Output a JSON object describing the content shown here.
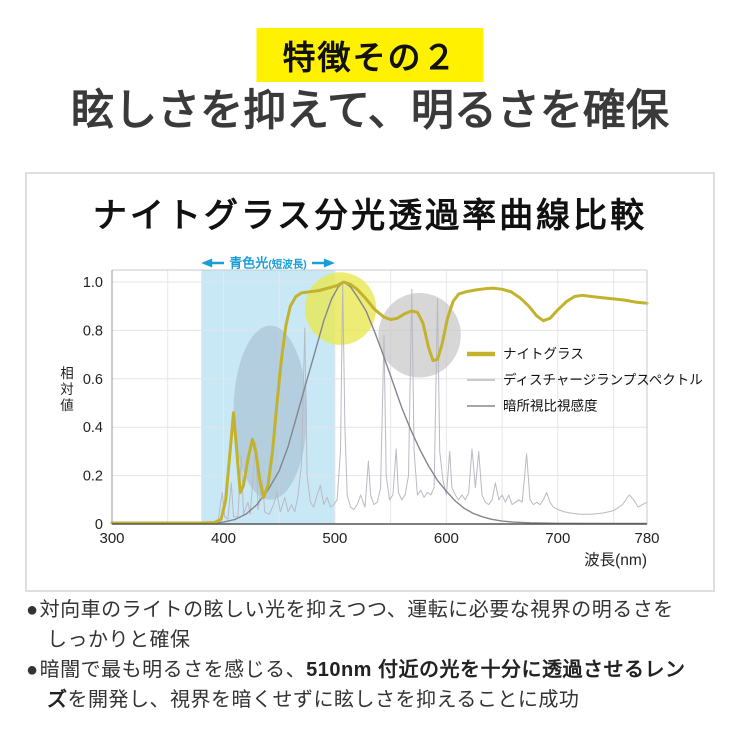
{
  "badge": {
    "label": "特徴その２",
    "bg_color": "#fff100"
  },
  "heading": "眩しさを抑えて、明るさを確保",
  "chart_data": {
    "type": "line",
    "title": "ナイトグラス分光透過率曲線比較",
    "xlabel": "波長(nm)",
    "ylabel": "相対値",
    "xlim": [
      300,
      780
    ],
    "ylim": [
      0,
      1.0
    ],
    "x_ticks": [
      300,
      400,
      500,
      600,
      700,
      780
    ],
    "y_ticks": [
      {
        "v": 0,
        "label": "0"
      },
      {
        "v": 0.2,
        "label": "0.2"
      },
      {
        "v": 0.4,
        "label": "0.4"
      },
      {
        "v": 0.6,
        "label": "0.6"
      },
      {
        "v": 0.8,
        "label": "0.8"
      },
      {
        "v": 1.0,
        "label": "1.0"
      }
    ],
    "grid": true,
    "legend_position": "right-middle",
    "band": {
      "label": "青色光",
      "label_sub": "(短波長)",
      "from_nm": 380,
      "to_nm": 500,
      "color": "#c9e8f5",
      "arrow_color": "#189fd8"
    },
    "highlights": [
      {
        "name": "blue-gray-ellipse-highlight",
        "nm": 442,
        "value": 0.46,
        "rx_nm": 33,
        "ry_val": 0.36,
        "color": "#9db4c8",
        "opacity": 0.5
      },
      {
        "name": "yellow-circle-highlight-510nm",
        "nm": 505,
        "value": 0.89,
        "rx_nm": 32,
        "ry_val": 0.15,
        "color": "#e8e84e",
        "opacity": 0.78
      },
      {
        "name": "gray-circle-highlight",
        "nm": 576,
        "value": 0.78,
        "rx_nm": 37,
        "ry_val": 0.175,
        "color": "#c6c6c6",
        "opacity": 0.7
      }
    ],
    "series": [
      {
        "name": "ナイトグラス",
        "color": "#c3b22c",
        "width": 3,
        "points": [
          [
            300,
            0.004
          ],
          [
            380,
            0.004
          ],
          [
            392,
            0.006
          ],
          [
            398,
            0.02
          ],
          [
            402,
            0.1
          ],
          [
            406,
            0.3
          ],
          [
            409,
            0.46
          ],
          [
            412,
            0.3
          ],
          [
            415,
            0.13
          ],
          [
            418,
            0.16
          ],
          [
            422,
            0.27
          ],
          [
            426,
            0.35
          ],
          [
            429,
            0.3
          ],
          [
            433,
            0.17
          ],
          [
            436,
            0.11
          ],
          [
            440,
            0.16
          ],
          [
            444,
            0.3
          ],
          [
            448,
            0.5
          ],
          [
            452,
            0.68
          ],
          [
            456,
            0.82
          ],
          [
            460,
            0.9
          ],
          [
            465,
            0.94
          ],
          [
            470,
            0.955
          ],
          [
            478,
            0.96
          ],
          [
            486,
            0.965
          ],
          [
            494,
            0.975
          ],
          [
            502,
            0.985
          ],
          [
            508,
            1.0
          ],
          [
            514,
            0.99
          ],
          [
            520,
            0.97
          ],
          [
            528,
            0.93
          ],
          [
            536,
            0.885
          ],
          [
            544,
            0.855
          ],
          [
            550,
            0.845
          ],
          [
            556,
            0.85
          ],
          [
            563,
            0.87
          ],
          [
            569,
            0.88
          ],
          [
            574,
            0.875
          ],
          [
            579,
            0.83
          ],
          [
            584,
            0.73
          ],
          [
            588,
            0.675
          ],
          [
            592,
            0.68
          ],
          [
            596,
            0.74
          ],
          [
            601,
            0.85
          ],
          [
            606,
            0.92
          ],
          [
            611,
            0.95
          ],
          [
            618,
            0.96
          ],
          [
            626,
            0.967
          ],
          [
            634,
            0.972
          ],
          [
            642,
            0.975
          ],
          [
            650,
            0.97
          ],
          [
            658,
            0.96
          ],
          [
            666,
            0.935
          ],
          [
            674,
            0.9
          ],
          [
            681,
            0.86
          ],
          [
            687,
            0.84
          ],
          [
            693,
            0.85
          ],
          [
            700,
            0.885
          ],
          [
            708,
            0.92
          ],
          [
            715,
            0.94
          ],
          [
            722,
            0.945
          ],
          [
            730,
            0.94
          ],
          [
            740,
            0.935
          ],
          [
            750,
            0.93
          ],
          [
            760,
            0.925
          ],
          [
            770,
            0.917
          ],
          [
            780,
            0.912
          ]
        ]
      },
      {
        "name": "ディスチャージランプスペクトル",
        "color": "#b9bac4",
        "width": 1,
        "points": [
          [
            300,
            0.003
          ],
          [
            360,
            0.003
          ],
          [
            385,
            0.005
          ],
          [
            395,
            0.01
          ],
          [
            399,
            0.13
          ],
          [
            401,
            0.03
          ],
          [
            404,
            0.02
          ],
          [
            407,
            0.17
          ],
          [
            409,
            0.03
          ],
          [
            413,
            0.03
          ],
          [
            416,
            0.28
          ],
          [
            418,
            0.04
          ],
          [
            422,
            0.09
          ],
          [
            424,
            0.04
          ],
          [
            429,
            0.34
          ],
          [
            431,
            0.06
          ],
          [
            435,
            0.18
          ],
          [
            437,
            0.05
          ],
          [
            441,
            0.04
          ],
          [
            445,
            0.08
          ],
          [
            448,
            0.13
          ],
          [
            451,
            0.05
          ],
          [
            455,
            0.11
          ],
          [
            458,
            0.05
          ],
          [
            461,
            0.08
          ],
          [
            464,
            0.05
          ],
          [
            467,
            0.12
          ],
          [
            470,
            0.25
          ],
          [
            473,
            0.81
          ],
          [
            475,
            0.2
          ],
          [
            478,
            0.09
          ],
          [
            481,
            0.07
          ],
          [
            484,
            0.12
          ],
          [
            487,
            0.16
          ],
          [
            490,
            0.08
          ],
          [
            493,
            0.11
          ],
          [
            496,
            0.07
          ],
          [
            499,
            0.08
          ],
          [
            502,
            0.1
          ],
          [
            505,
            0.3
          ],
          [
            507,
            1.0
          ],
          [
            509,
            0.4
          ],
          [
            511,
            0.12
          ],
          [
            514,
            0.07
          ],
          [
            517,
            0.06
          ],
          [
            520,
            0.08
          ],
          [
            523,
            0.12
          ],
          [
            527,
            0.07
          ],
          [
            530,
            0.26
          ],
          [
            532,
            0.12
          ],
          [
            535,
            0.08
          ],
          [
            538,
            0.09
          ],
          [
            541,
            0.15
          ],
          [
            544,
            0.78
          ],
          [
            546,
            0.2
          ],
          [
            549,
            0.1
          ],
          [
            552,
            0.12
          ],
          [
            555,
            0.31
          ],
          [
            557,
            0.13
          ],
          [
            560,
            0.1
          ],
          [
            563,
            0.12
          ],
          [
            566,
            0.2
          ],
          [
            569,
            0.97
          ],
          [
            571,
            0.3
          ],
          [
            574,
            0.12
          ],
          [
            577,
            0.14
          ],
          [
            580,
            0.11
          ],
          [
            583,
            0.13
          ],
          [
            586,
            0.12
          ],
          [
            589,
            0.15
          ],
          [
            592,
            0.93
          ],
          [
            594,
            0.3
          ],
          [
            597,
            0.18
          ],
          [
            600,
            0.12
          ],
          [
            603,
            0.3
          ],
          [
            605,
            0.15
          ],
          [
            608,
            0.12
          ],
          [
            611,
            0.1
          ],
          [
            614,
            0.12
          ],
          [
            617,
            0.1
          ],
          [
            620,
            0.13
          ],
          [
            623,
            0.31
          ],
          [
            626,
            0.15
          ],
          [
            629,
            0.3
          ],
          [
            632,
            0.12
          ],
          [
            635,
            0.09
          ],
          [
            638,
            0.08
          ],
          [
            641,
            0.1
          ],
          [
            644,
            0.17
          ],
          [
            647,
            0.1
          ],
          [
            650,
            0.12
          ],
          [
            653,
            0.09
          ],
          [
            656,
            0.12
          ],
          [
            659,
            0.08
          ],
          [
            662,
            0.09
          ],
          [
            665,
            0.1
          ],
          [
            668,
            0.09
          ],
          [
            672,
            0.29
          ],
          [
            675,
            0.1
          ],
          [
            678,
            0.08
          ],
          [
            681,
            0.09
          ],
          [
            684,
            0.08
          ],
          [
            687,
            0.1
          ],
          [
            690,
            0.13
          ],
          [
            693,
            0.09
          ],
          [
            696,
            0.07
          ],
          [
            700,
            0.06
          ],
          [
            706,
            0.05
          ],
          [
            712,
            0.045
          ],
          [
            720,
            0.04
          ],
          [
            730,
            0.04
          ],
          [
            740,
            0.045
          ],
          [
            750,
            0.055
          ],
          [
            758,
            0.08
          ],
          [
            764,
            0.12
          ],
          [
            768,
            0.1
          ],
          [
            772,
            0.07
          ],
          [
            776,
            0.08
          ],
          [
            780,
            0.09
          ]
        ]
      },
      {
        "name": "暗所視比視感度",
        "color": "#85858f",
        "width": 1.4,
        "points": [
          [
            300,
            0.002
          ],
          [
            390,
            0.003
          ],
          [
            400,
            0.008
          ],
          [
            410,
            0.018
          ],
          [
            420,
            0.04
          ],
          [
            430,
            0.08
          ],
          [
            440,
            0.14
          ],
          [
            450,
            0.22
          ],
          [
            458,
            0.32
          ],
          [
            466,
            0.45
          ],
          [
            474,
            0.58
          ],
          [
            482,
            0.71
          ],
          [
            490,
            0.84
          ],
          [
            497,
            0.93
          ],
          [
            503,
            0.98
          ],
          [
            508,
            1.0
          ],
          [
            514,
            0.98
          ],
          [
            520,
            0.94
          ],
          [
            528,
            0.88
          ],
          [
            536,
            0.79
          ],
          [
            544,
            0.69
          ],
          [
            552,
            0.585
          ],
          [
            560,
            0.48
          ],
          [
            568,
            0.39
          ],
          [
            576,
            0.31
          ],
          [
            584,
            0.24
          ],
          [
            592,
            0.18
          ],
          [
            600,
            0.135
          ],
          [
            608,
            0.095
          ],
          [
            616,
            0.065
          ],
          [
            624,
            0.044
          ],
          [
            632,
            0.03
          ],
          [
            640,
            0.02
          ],
          [
            650,
            0.012
          ],
          [
            660,
            0.008
          ],
          [
            675,
            0.005
          ],
          [
            700,
            0.003
          ],
          [
            740,
            0.002
          ],
          [
            780,
            0.002
          ]
        ]
      }
    ]
  },
  "bullets": [
    {
      "marker": "●",
      "segments": [
        {
          "text": "対向車のライトの眩しい光を抑えつつ、運転に必要な視界の明るさをしっかりと確保",
          "bold": false
        }
      ]
    },
    {
      "marker": "●",
      "segments": [
        {
          "text": "暗闇で最も明るさを感じる、",
          "bold": false
        },
        {
          "text": "510nm 付近の光を十分に透過させるレンズ",
          "bold": true
        },
        {
          "text": "を開発し、視界を暗くせずに眩しさを抑えることに成功",
          "bold": false
        }
      ]
    }
  ]
}
